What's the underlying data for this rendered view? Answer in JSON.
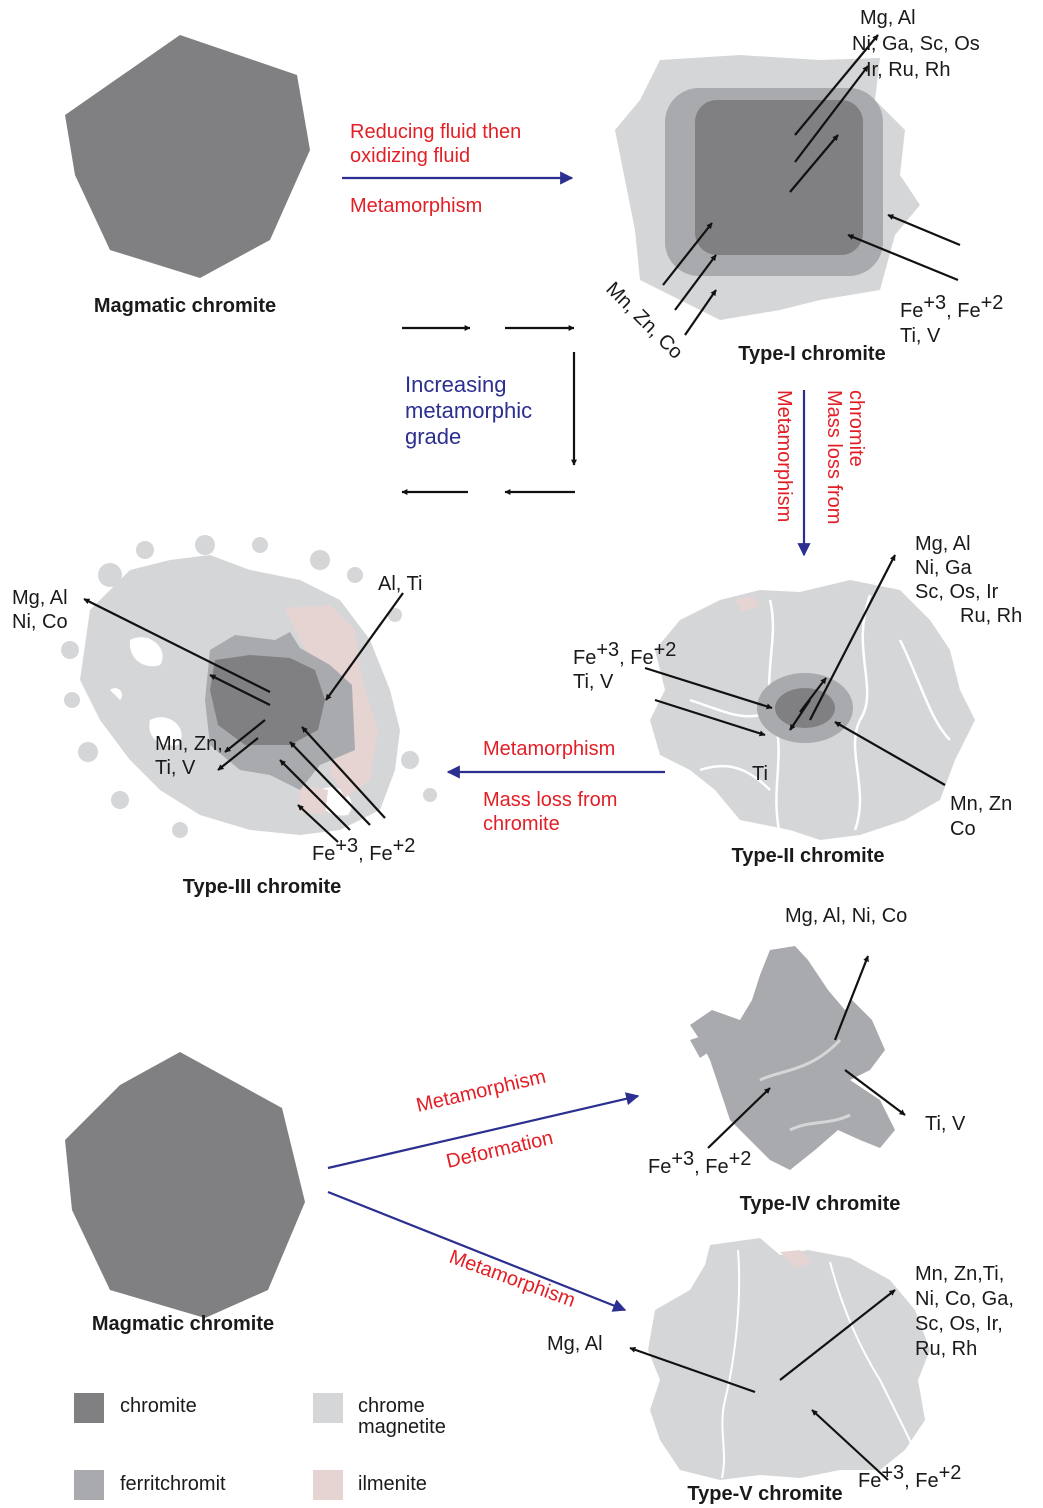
{
  "colors": {
    "chromite": "#808083",
    "ferritchromit": "#a9aaae",
    "chrome_magnetite": "#d5d6d8",
    "ilmenite": "#e6d4d3",
    "process_text": "#e21f26",
    "trend_text": "#2b2f8f",
    "process_arrow": "#2b2f8f"
  },
  "magmatic_top": {
    "label": "Magmatic chromite"
  },
  "magmatic_bottom": {
    "label": "Magmatic chromite"
  },
  "step1": {
    "line1": "Reducing fluid then",
    "line2": "oxidizing fluid",
    "line3": "Metamorphism"
  },
  "grade": {
    "line1": "Increasing",
    "line2": "metamorphic",
    "line3": "grade"
  },
  "type1": {
    "title": "Type-I chromite",
    "out1": "Mg, Al",
    "out2": "Ni, Ga, Sc, Os",
    "out3": "Ir, Ru, Rh",
    "in_fe_a": "Fe",
    "in_fe_a_sup": "+3",
    "in_fe_b": ", Fe",
    "in_fe_b_sup": "+2",
    "in_ti": "Ti, V",
    "in_mn": "Mn, Zn, Co"
  },
  "step2": {
    "text1": "Metamorphism",
    "text2a": "Mass loss from",
    "text2b": "chromite"
  },
  "type2": {
    "title": "Type-II chromite",
    "out1": "Mg, Al",
    "out2": "Ni, Ga",
    "out3": "Sc, Os, Ir",
    "out4": "Ru, Rh",
    "in_fe_a": "Fe",
    "in_fe_a_sup": "+3",
    "in_fe_b": ", Fe",
    "in_fe_b_sup": "+2",
    "in_ti": "Ti, V",
    "core": "Ti",
    "in_mn1": "Mn, Zn",
    "in_mn2": "Co"
  },
  "step3": {
    "line1": "Metamorphism",
    "line2": "Mass loss from",
    "line3": "chromite"
  },
  "type3": {
    "title": "Type-III chromite",
    "out1": "Mg, Al",
    "out2": "Ni, Co",
    "in_alti": "Al, Ti",
    "out_mn1": "Mn, Zn,",
    "out_mn2": "Ti, V",
    "in_fe_a": "Fe",
    "in_fe_a_sup": "+3",
    "in_fe_b": ", Fe",
    "in_fe_b_sup": "+2"
  },
  "step4": {
    "line1": "Metamorphism",
    "line2": "Deformation"
  },
  "type4": {
    "title": "Type-IV chromite",
    "out1": "Mg, Al, Ni, Co",
    "out2": "Ti, V",
    "in_fe_a": "Fe",
    "in_fe_a_sup": "+3",
    "in_fe_b": ", Fe",
    "in_fe_b_sup": "+2"
  },
  "step5": {
    "line1": "Metamorphism"
  },
  "type5": {
    "title": "Type-V chromite",
    "out1": "Mn, Zn,Ti,",
    "out2": "Ni, Co, Ga,",
    "out3": "Sc, Os, Ir,",
    "out4": "Ru, Rh",
    "out_mg": "Mg, Al",
    "in_fe_a": "Fe",
    "in_fe_a_sup": "+3",
    "in_fe_b": ", Fe",
    "in_fe_b_sup": "+2"
  },
  "legend": {
    "chromite": "chromite",
    "ferritchromit": "ferritchromit",
    "chrome_magnetite_1": "chrome",
    "chrome_magnetite_2": "magnetite",
    "ilmenite": "ilmenite"
  }
}
